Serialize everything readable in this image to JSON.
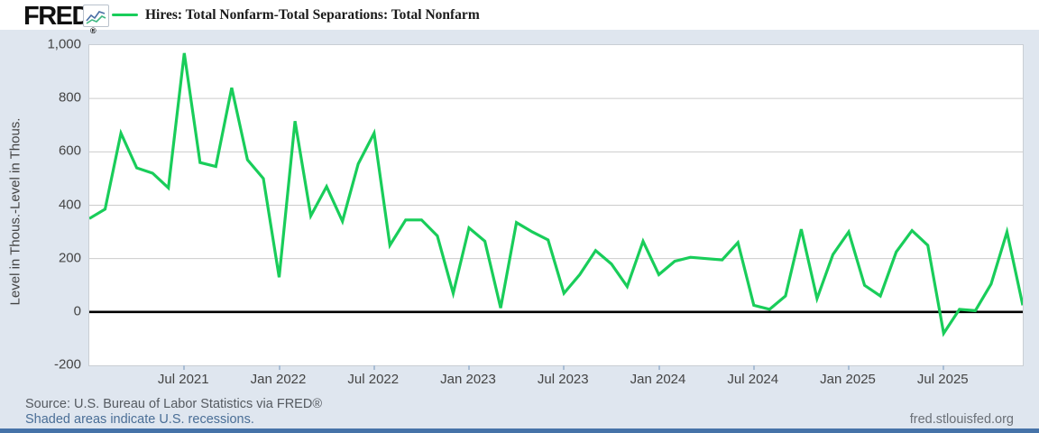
{
  "header": {
    "brand": "FRED",
    "brand_reg": "®",
    "legend_label": "Hires: Total Nonfarm-Total Separations: Total Nonfarm"
  },
  "y_axis": {
    "title": "Level in Thous.-Level in Thous.",
    "tick_labels": [
      "1,000",
      "800",
      "600",
      "400",
      "200",
      "0",
      "-200"
    ],
    "tick_values": [
      1000,
      800,
      600,
      400,
      200,
      0,
      -200
    ]
  },
  "x_axis": {
    "tick_labels": [
      "Jul 2021",
      "Jan 2022",
      "Jul 2022",
      "Jan 2023",
      "Jul 2023",
      "Jan 2024",
      "Jul 2024",
      "Jan 2025",
      "Jul 2025"
    ],
    "tick_month_index": [
      6,
      12,
      18,
      24,
      30,
      36,
      42,
      48,
      54
    ]
  },
  "footer": {
    "source": "Source: U.S. Bureau of Labor Statistics via FRED®",
    "recession_note": "Shaded areas indicate U.S. recessions.",
    "site": "fred.stlouisfed.org"
  },
  "colors": {
    "line": "#19cd5a",
    "background": "#dfe6ef",
    "plot_background": "#ffffff",
    "grid": "#cccccc",
    "zero_line": "#000000",
    "axis_text": "#444444",
    "tick_mark": "#a9bdd4",
    "link": "#4a6e96",
    "footer_bar": "#4673a8",
    "icon_blue": "#4a6fa5",
    "icon_green": "#42b983"
  },
  "chart_data": {
    "type": "line",
    "title": "Hires: Total Nonfarm-Total Separations: Total Nonfarm",
    "xlabel": "",
    "ylabel": "Level in Thous.-Level in Thous.",
    "ylim": [
      -200,
      1000
    ],
    "y_tick_step": 200,
    "grid": true,
    "legend_position": "top-left",
    "series_name": "Hires: Total Nonfarm-Total Separations: Total Nonfarm",
    "frequency": "monthly",
    "x": [
      "2021-01",
      "2021-02",
      "2021-03",
      "2021-04",
      "2021-05",
      "2021-06",
      "2021-07",
      "2021-08",
      "2021-09",
      "2021-10",
      "2021-11",
      "2021-12",
      "2022-01",
      "2022-02",
      "2022-03",
      "2022-04",
      "2022-05",
      "2022-06",
      "2022-07",
      "2022-08",
      "2022-09",
      "2022-10",
      "2022-11",
      "2022-12",
      "2023-01",
      "2023-02",
      "2023-03",
      "2023-04",
      "2023-05",
      "2023-06",
      "2023-07",
      "2023-08",
      "2023-09",
      "2023-10",
      "2023-11",
      "2023-12",
      "2024-01",
      "2024-02",
      "2024-03",
      "2024-04",
      "2024-05",
      "2024-06",
      "2024-07",
      "2024-08",
      "2024-09",
      "2024-10",
      "2024-11",
      "2024-12",
      "2025-01",
      "2025-02",
      "2025-03",
      "2025-04",
      "2025-05",
      "2025-06",
      "2025-07",
      "2025-08",
      "2025-09",
      "2025-10",
      "2025-11",
      "2025-12"
    ],
    "values": [
      350,
      385,
      670,
      540,
      520,
      465,
      970,
      560,
      545,
      840,
      570,
      500,
      130,
      715,
      360,
      470,
      340,
      555,
      670,
      250,
      345,
      345,
      285,
      70,
      315,
      265,
      15,
      335,
      300,
      270,
      70,
      140,
      230,
      180,
      95,
      265,
      140,
      190,
      205,
      200,
      195,
      260,
      25,
      10,
      60,
      310,
      50,
      215,
      300,
      100,
      60,
      225,
      305,
      250,
      -80,
      10,
      5,
      105,
      300,
      25
    ]
  }
}
